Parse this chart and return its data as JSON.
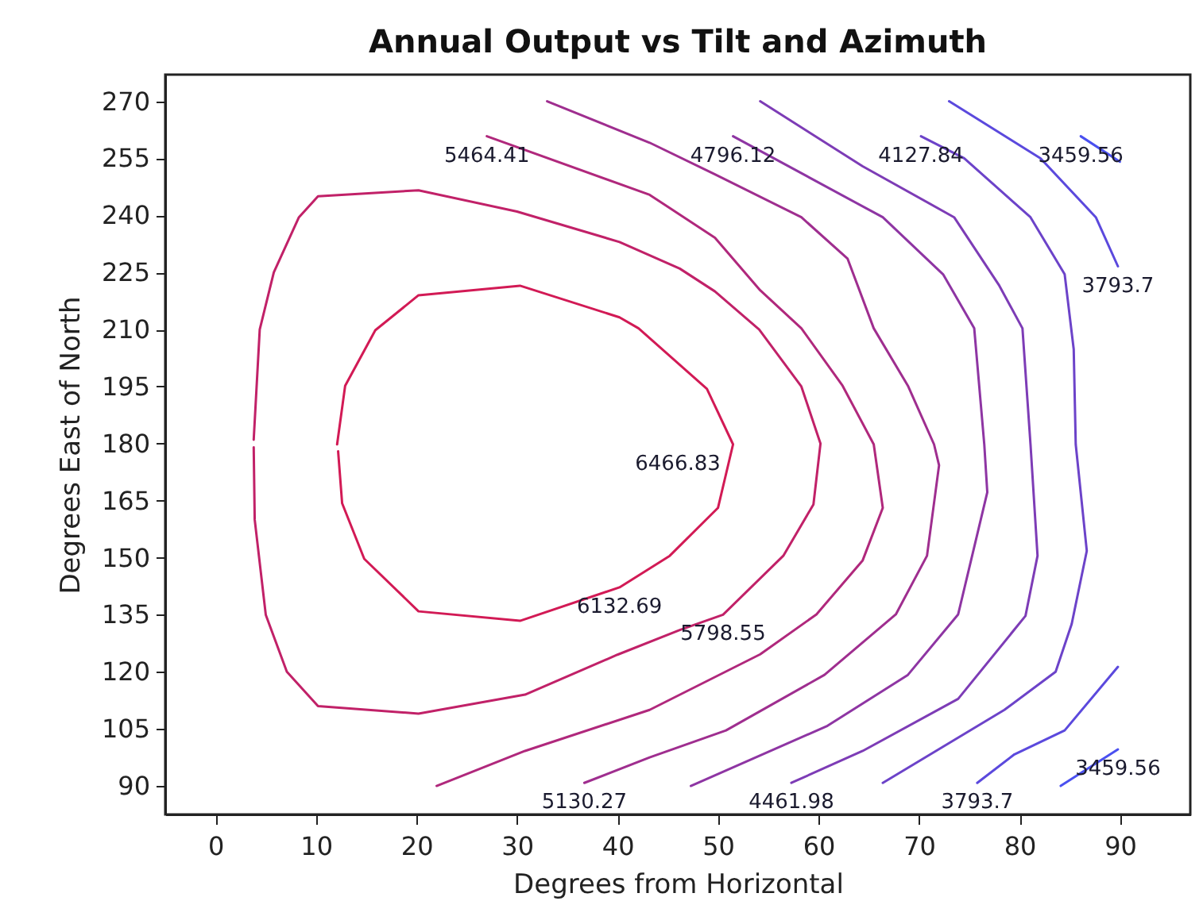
{
  "chart_data": {
    "type": "line",
    "title": "Annual Output vs Tilt and Azimuth",
    "xlabel": "Degrees from Horizontal",
    "ylabel": "Degrees East of North",
    "xlim": [
      -5,
      97
    ],
    "ylim": [
      82.5,
      277
    ],
    "xticks": [
      0,
      10,
      20,
      30,
      40,
      50,
      60,
      70,
      80,
      90
    ],
    "yticks": [
      90,
      105,
      120,
      135,
      150,
      165,
      180,
      195,
      210,
      225,
      240,
      255,
      270
    ],
    "series": [
      {
        "color": "#d21a55",
        "x": [
          12.1,
          12.9,
          15.9,
          20.2,
          30.3,
          40.2,
          42.1,
          48.9,
          51.5,
          50.0,
          45.2,
          40.2,
          30.3,
          20.2,
          14.8,
          12.6,
          12.2
        ],
        "values": [
          179.8,
          195.2,
          209.8,
          219,
          221.5,
          213.2,
          210.3,
          194.4,
          179.8,
          163.1,
          150.5,
          142.2,
          133.4,
          135.9,
          149.7,
          164.3,
          178
        ]
      },
      {
        "color": "#c12168",
        "x": [
          3.8,
          4.4,
          5.8,
          8.3,
          10.2,
          20.2,
          30,
          40.2,
          46.2,
          49.7,
          54.1,
          58.3,
          60.2,
          59.5,
          56.5,
          50.5,
          46.2,
          40,
          30.8,
          20.2,
          10.2,
          7.1,
          5,
          3.9,
          3.8
        ],
        "values": [
          181,
          210,
          225,
          239.5,
          245,
          246.6,
          241,
          233,
          226,
          220,
          210,
          195,
          180,
          164,
          150.5,
          135,
          131,
          124.5,
          114,
          109,
          111,
          120,
          135,
          160,
          179
        ]
      },
      {
        "color": "#b0287c",
        "x": [
          27.0,
          43.2,
          49.7,
          54.2,
          58.3,
          62.4,
          65.5,
          66.4,
          64.4,
          59.8,
          54.2,
          43.2,
          30.8,
          22.0
        ],
        "values": [
          260.8,
          245.4,
          234.1,
          220.3,
          210.3,
          195.2,
          179.8,
          163.1,
          149.3,
          135.1,
          124.6,
          110,
          99.2,
          90
        ]
      },
      {
        "color": "#9f2e8f",
        "x": [
          33.0,
          43.2,
          49.7,
          58.3,
          62.9,
          65.5,
          68.9,
          71.5,
          72.0,
          70.8,
          67.7,
          60.6,
          50.8,
          43.2,
          36.7
        ],
        "values": [
          270,
          259.1,
          250.8,
          239.5,
          228.6,
          210.3,
          195.2,
          179.8,
          174.3,
          150.5,
          135.1,
          119.2,
          104.6,
          97.5,
          90.8
        ]
      },
      {
        "color": "#8e35a3",
        "x": [
          51.5,
          66.4,
          72.4,
          75.5,
          76.5,
          76.8,
          73.9,
          68.9,
          60.9,
          47.3
        ],
        "values": [
          260.8,
          239.5,
          224.5,
          210.3,
          179.8,
          167.2,
          135.1,
          119.2,
          105.8,
          90
        ]
      },
      {
        "color": "#7d3cb6",
        "x": [
          54.2,
          64.4,
          73.5,
          78.0,
          80.3,
          81.1,
          81.8,
          80.6,
          73.9,
          64.4,
          57.3
        ],
        "values": [
          270,
          252.9,
          239.5,
          221.5,
          210.3,
          179.8,
          150.5,
          134.7,
          112.9,
          99.2,
          90.8
        ]
      },
      {
        "color": "#6c43c9",
        "x": [
          70.2,
          74.5,
          81.1,
          84.5,
          85.4,
          85.6,
          86.7,
          85.2,
          83.6,
          78.5,
          66.4
        ],
        "values": [
          260.8,
          255,
          239.5,
          224.5,
          204.8,
          179.8,
          151.8,
          132.6,
          120,
          110,
          90.8
        ]
      },
      {
        "color": "#5b49dd",
        "x": [
          73.0,
          82.1,
          87.6,
          89.8,
          null,
          89.8,
          84.5,
          79.5,
          75.8
        ],
        "values": [
          270,
          255,
          239.5,
          226.6,
          null,
          121.3,
          104.6,
          98.3,
          90.8
        ]
      },
      {
        "color": "#4a50f0",
        "x": [
          86.1,
          90,
          null,
          84.1,
          89.8
        ],
        "values": [
          260.8,
          254.1,
          null,
          90,
          99.6
        ]
      }
    ],
    "annotations": [
      "6466.83",
      {
        "text": "6132.69",
        "x": 40.2,
        "y": 142.2
      },
      {
        "text": "5798.55",
        "x": 50.5,
        "y": 135
      },
      {
        "text": "5464.41",
        "x": 27,
        "y": 260.8
      },
      {
        "text": "5130.27",
        "x": 36.7,
        "y": 90.8
      },
      {
        "text": "4796.12",
        "x": 51.5,
        "y": 260.8
      },
      {
        "text": "4461.98",
        "x": 57.3,
        "y": 90.8
      },
      {
        "text": "4127.84",
        "x": 70.2,
        "y": 260.8
      },
      {
        "text": "3793.7",
        "x": 75.8,
        "y": 90.8
      },
      {
        "text": "3793.7",
        "x": 89.8,
        "y": 226.6
      },
      {
        "text": "3459.56",
        "x": 86.1,
        "y": 260.8
      },
      {
        "text": "3459.56",
        "x": 89.8,
        "y": 99.6
      }
    ]
  }
}
